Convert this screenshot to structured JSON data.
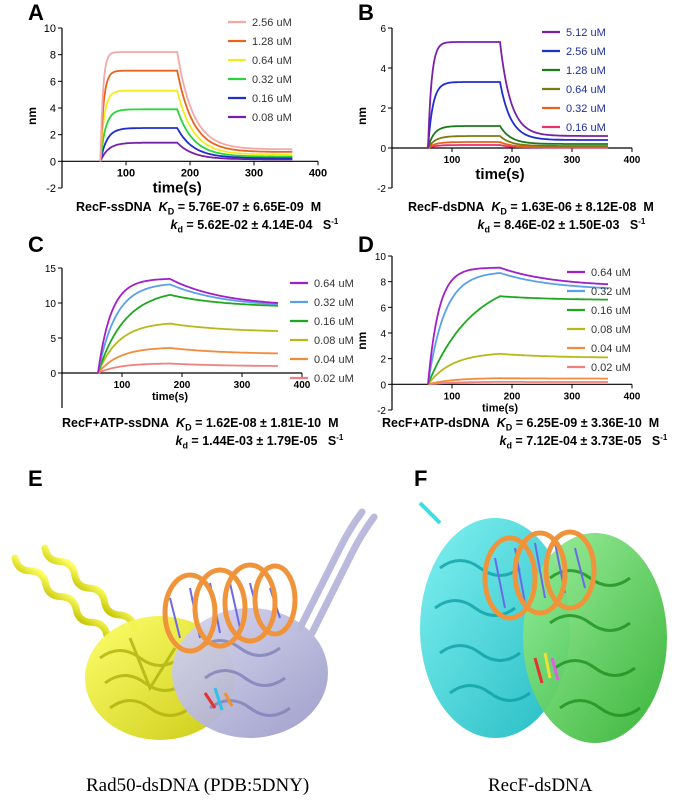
{
  "colors": {
    "c256": "#f4a8a8",
    "c128": "#e8641e",
    "c064": "#f2ec1c",
    "c032": "#2bd43a",
    "c016": "#1f2fcc",
    "c008": "#7a1fa8",
    "b512": "#7a1fa8",
    "b256": "#1f2fcc",
    "b128": "#1c7a1c",
    "b064": "#7a7a10",
    "b032": "#e8641e",
    "b016": "#e8326e",
    "d064": "#a01fc8",
    "d032": "#5aa0e8",
    "d016": "#1fa81f",
    "d008": "#b8b81a",
    "d004": "#f08c3a",
    "d002": "#f08080",
    "rad50_a": "#f2f21e",
    "rad50_b": "#b4b4dc",
    "recf_a": "#38e0e0",
    "recf_b": "#5ad85a",
    "dna_backbone": "#f0943c",
    "dna_bases": "#6a6ae8"
  },
  "captions": {
    "E_letter": "E",
    "F_letter": "F",
    "E": "Rad50-dsDNA  (PDB:5DNY)",
    "F": "RecF-dsDNA"
  },
  "chart_data": [
    {
      "panel": "A",
      "type": "line",
      "xlabel": "time(s)",
      "ylabel": "nm",
      "xlim": [
        0,
        400
      ],
      "ylim": [
        -2,
        10
      ],
      "xticks": [
        "100",
        "200",
        "300",
        "400"
      ],
      "yticks": [
        "-2",
        "0",
        "2",
        "4",
        "6",
        "8",
        "10"
      ],
      "assoc_start": 60,
      "dissoc_start": 180,
      "end": 360,
      "legend_position": "top-right",
      "series": [
        {
          "name": "2.56 uM",
          "color": "#f4a8a8",
          "plateau": 8.2,
          "tau_a": 4,
          "dissoc_floor": 0.9,
          "tau_d": 25
        },
        {
          "name": "1.28 uM",
          "color": "#e8641e",
          "plateau": 6.8,
          "tau_a": 5,
          "dissoc_floor": 0.7,
          "tau_d": 25
        },
        {
          "name": "0.64 uM",
          "color": "#f2ec1c",
          "plateau": 5.3,
          "tau_a": 6,
          "dissoc_floor": 0.5,
          "tau_d": 25
        },
        {
          "name": "0.32 uM",
          "color": "#2bd43a",
          "plateau": 3.9,
          "tau_a": 8,
          "dissoc_floor": 0.35,
          "tau_d": 25
        },
        {
          "name": "0.16 uM",
          "color": "#1f2fcc",
          "plateau": 2.5,
          "tau_a": 10,
          "dissoc_floor": 0.25,
          "tau_d": 25
        },
        {
          "name": "0.08 uM",
          "color": "#7a1fa8",
          "plateau": 1.4,
          "tau_a": 12,
          "dissoc_floor": 0.15,
          "tau_d": 25
        }
      ],
      "equation": {
        "label": "RecF-ssDNA",
        "KD": "= 5.76E-07 ± 6.65E-09",
        "KD_unit": "M",
        "kd": "= 5.62E-02 ± 4.14E-04",
        "kd_unit": "S"
      }
    },
    {
      "panel": "B",
      "type": "line",
      "xlabel": "time(s)",
      "ylabel": "nm",
      "xlim": [
        0,
        400
      ],
      "ylim": [
        -2,
        6
      ],
      "xticks": [
        "100",
        "200",
        "300",
        "400"
      ],
      "yticks": [
        "-2",
        "0",
        "2",
        "4",
        "6"
      ],
      "assoc_start": 60,
      "dissoc_start": 180,
      "end": 360,
      "legend_position": "top-right",
      "series": [
        {
          "name": "5.12 uM",
          "color": "#7a1fa8",
          "plateau": 5.3,
          "tau_a": 6,
          "dissoc_floor": 0.6,
          "tau_d": 18
        },
        {
          "name": "2.56 uM",
          "color": "#1f2fcc",
          "plateau": 3.3,
          "tau_a": 8,
          "dissoc_floor": 0.4,
          "tau_d": 18
        },
        {
          "name": "1.28 uM",
          "color": "#1c7a1c",
          "plateau": 1.1,
          "tau_a": 10,
          "dissoc_floor": 0.2,
          "tau_d": 18
        },
        {
          "name": "0.64 uM",
          "color": "#7a7a10",
          "plateau": 0.6,
          "tau_a": 12,
          "dissoc_floor": 0.1,
          "tau_d": 18
        },
        {
          "name": "0.32 uM",
          "color": "#e8641e",
          "plateau": 0.3,
          "tau_a": 12,
          "dissoc_floor": 0.05,
          "tau_d": 18
        },
        {
          "name": "0.16 uM",
          "color": "#e8326e",
          "plateau": 0.15,
          "tau_a": 12,
          "dissoc_floor": 0.02,
          "tau_d": 18
        }
      ],
      "equation": {
        "label": "RecF-dsDNA",
        "KD": "= 1.63E-06 ± 8.12E-08",
        "KD_unit": "M",
        "kd": "= 8.46E-02 ± 1.50E-03",
        "kd_unit": "S"
      }
    },
    {
      "panel": "C",
      "type": "line",
      "xlabel": "time(s)",
      "ylabel": "",
      "xlim": [
        0,
        400
      ],
      "ylim": [
        -5,
        15
      ],
      "xticks": [
        "100",
        "200",
        "300",
        "400"
      ],
      "yticks": [
        "0",
        "5",
        "10",
        "15"
      ],
      "assoc_start": 60,
      "dissoc_start": 180,
      "end": 360,
      "legend_position": "right",
      "series": [
        {
          "name": "0.64 uM",
          "color": "#a01fc8",
          "plateau": 13.5,
          "tau_a": 22,
          "end_value": 10.0
        },
        {
          "name": "0.32 uM",
          "color": "#5aa0e8",
          "plateau": 12.9,
          "tau_a": 30,
          "end_value": 9.8
        },
        {
          "name": "0.16 uM",
          "color": "#1fa81f",
          "plateau": 12.0,
          "tau_a": 45,
          "end_value": 9.6
        },
        {
          "name": "0.08 uM",
          "color": "#b8b81a",
          "plateau": 7.3,
          "tau_a": 35,
          "end_value": 6.0
        },
        {
          "name": "0.04 uM",
          "color": "#f08c3a",
          "plateau": 3.7,
          "tau_a": 35,
          "end_value": 2.8
        },
        {
          "name": "0.02 uM",
          "color": "#f08080",
          "plateau": 1.4,
          "tau_a": 35,
          "end_value": 1.0
        }
      ],
      "equation": {
        "label": "RecF+ATP-ssDNA",
        "KD": "= 1.62E-08 ± 1.81E-10",
        "KD_unit": "M",
        "kd": "= 1.44E-03 ± 1.79E-05",
        "kd_unit": "S"
      }
    },
    {
      "panel": "D",
      "type": "line",
      "xlabel": "time(s)",
      "ylabel": "nm",
      "xlim": [
        0,
        400
      ],
      "ylim": [
        -2,
        10
      ],
      "xticks": [
        "100",
        "200",
        "300",
        "400"
      ],
      "yticks": [
        "-2",
        "0",
        "2",
        "4",
        "6",
        "8",
        "10"
      ],
      "assoc_start": 60,
      "dissoc_start": 180,
      "end": 360,
      "legend_position": "right",
      "series": [
        {
          "name": "0.64 uM",
          "color": "#a01fc8",
          "plateau": 9.1,
          "tau_a": 18,
          "end_value": 7.8
        },
        {
          "name": "0.32 uM",
          "color": "#5aa0e8",
          "plateau": 8.8,
          "tau_a": 28,
          "end_value": 7.5
        },
        {
          "name": "0.16 uM",
          "color": "#1fa81f",
          "plateau": 8.6,
          "tau_a": 75,
          "end_value": 6.6
        },
        {
          "name": "0.08 uM",
          "color": "#b8b81a",
          "plateau": 2.5,
          "tau_a": 40,
          "end_value": 2.1
        },
        {
          "name": "0.04 uM",
          "color": "#f08c3a",
          "plateau": 0.5,
          "tau_a": 40,
          "end_value": 0.45
        },
        {
          "name": "0.02 uM",
          "color": "#f08080",
          "plateau": 0.2,
          "tau_a": 40,
          "end_value": 0.18
        }
      ],
      "equation": {
        "label": "RecF+ATP-dsDNA",
        "KD": "= 6.25E-09 ± 3.36E-10",
        "KD_unit": "M",
        "kd": "= 7.12E-04 ± 3.73E-05",
        "kd_unit": "S"
      }
    }
  ]
}
